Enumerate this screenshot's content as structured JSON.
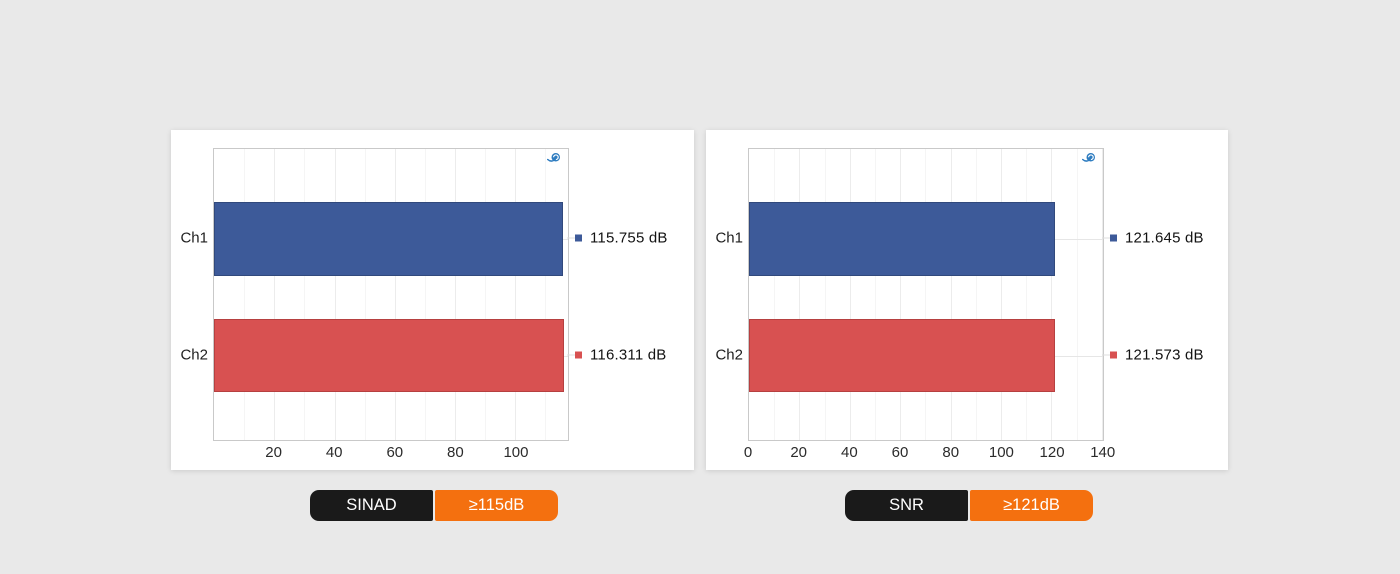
{
  "background_color": "#e9e9e9",
  "colors": {
    "card_bg": "#ffffff",
    "frame_border": "#c9c9c9",
    "grid_major": "#ececec",
    "grid_minor": "#f5f5f5",
    "category_line": "#e6e6e6",
    "axis_text": "#2b2b2b",
    "label_text": "#1f1f1f",
    "ch1_fill": "#3d5a99",
    "ch1_border": "#31497c",
    "ch2_fill": "#d85151",
    "ch2_border": "#b64040",
    "badge_dark_bg": "#1a1a1a",
    "badge_orange_bg": "#f4700f",
    "badge_text": "#ffffff",
    "logo_blue": "#2e7cc0"
  },
  "chart_data": [
    {
      "id": "sinad",
      "type": "bar",
      "orientation": "horizontal",
      "title": "",
      "xlabel": "",
      "ylabel": "",
      "categories": [
        "Ch1",
        "Ch2"
      ],
      "values": [
        115.755,
        116.311
      ],
      "value_labels": [
        "115.755 dB",
        "116.311 dB"
      ],
      "unit": "dB",
      "xlim": [
        0,
        117.5
      ],
      "xticks": [
        20,
        40,
        60,
        80,
        100
      ],
      "minor_tick_step": 10,
      "grid": true,
      "legend_position": "right",
      "watermark": "audio-precision-logo",
      "badge": {
        "metric": "SINAD",
        "spec": "≥115dB"
      }
    },
    {
      "id": "snr",
      "type": "bar",
      "orientation": "horizontal",
      "title": "",
      "xlabel": "",
      "ylabel": "",
      "categories": [
        "Ch1",
        "Ch2"
      ],
      "values": [
        121.645,
        121.573
      ],
      "value_labels": [
        "121.645 dB",
        "121.573 dB"
      ],
      "unit": "dB",
      "xlim": [
        0,
        140.5
      ],
      "xticks": [
        0,
        20,
        40,
        60,
        80,
        100,
        120,
        140
      ],
      "minor_tick_step": 10,
      "grid": true,
      "legend_position": "right",
      "watermark": "audio-precision-logo",
      "badge": {
        "metric": "SNR",
        "spec": "≥121dB"
      }
    }
  ]
}
